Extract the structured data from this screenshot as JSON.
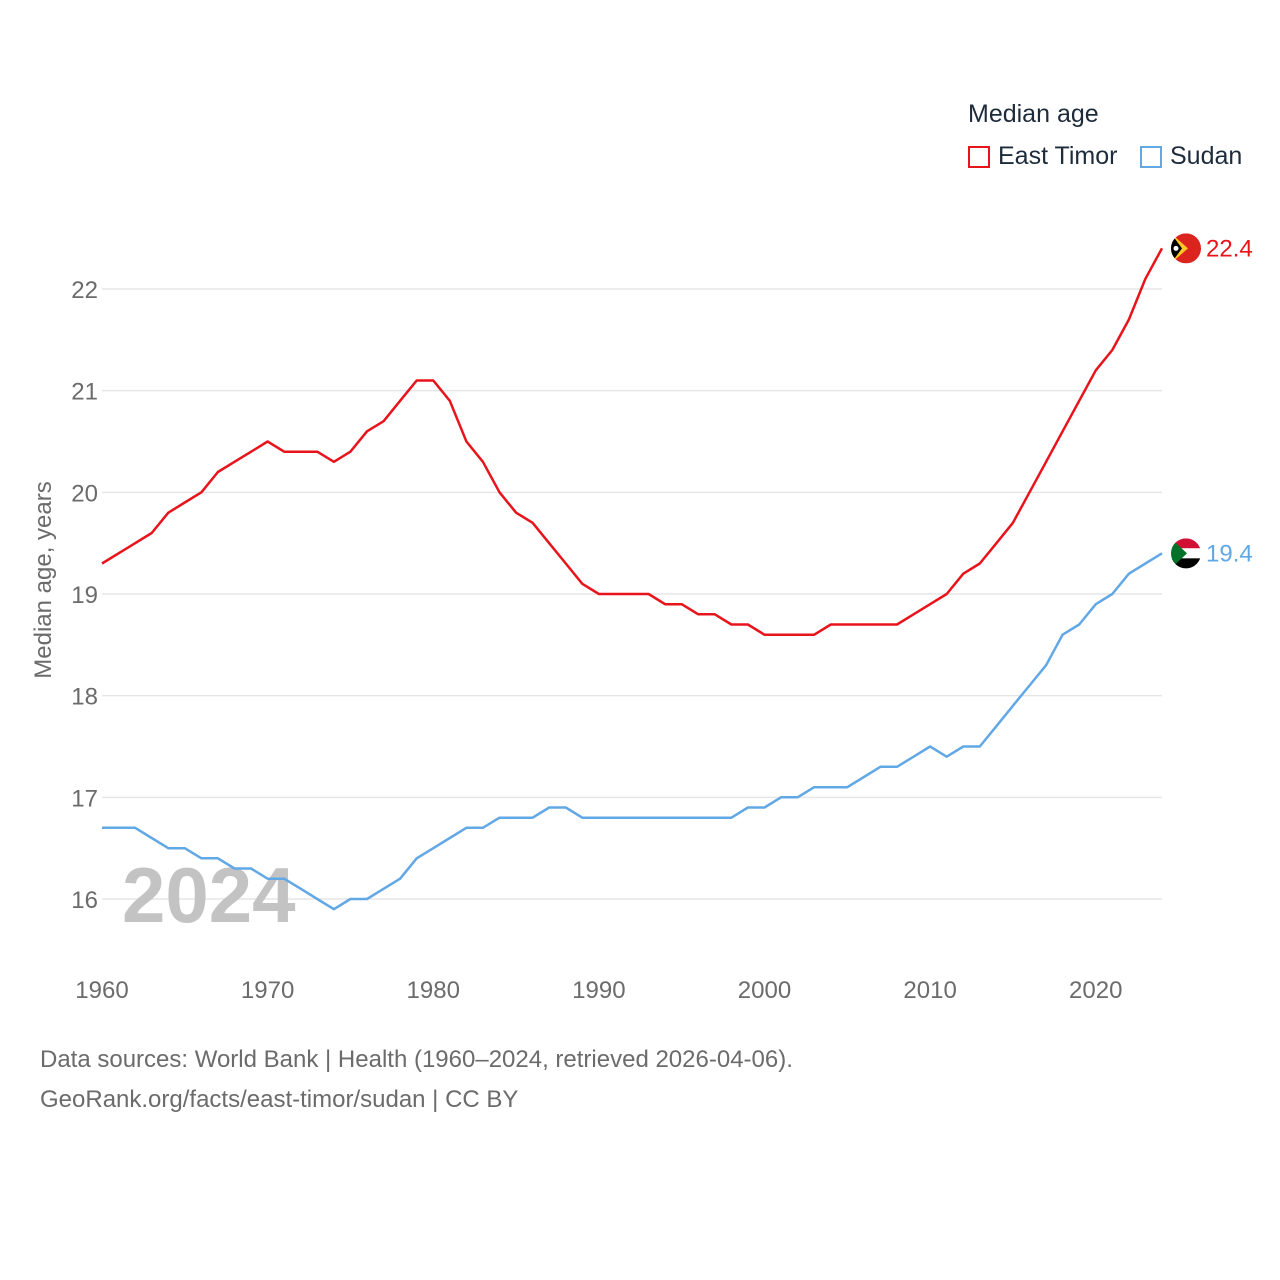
{
  "legend": {
    "title": "Median age",
    "items": [
      {
        "name": "East Timor",
        "color": "#e8141b"
      },
      {
        "name": "Sudan",
        "color": "#62a8e5"
      }
    ]
  },
  "watermark_year": "2024",
  "source": {
    "line1": "Data sources: World Bank | Health (1960–2024, retrieved 2026-04-06).",
    "line2": "GeoRank.org/facts/east-timor/sudan | CC BY"
  },
  "chart_data": {
    "type": "line",
    "title": "Median age",
    "xlabel": "",
    "ylabel": "Median age, years",
    "xlim": [
      1960,
      2024
    ],
    "ylim": [
      15.5,
      22.9
    ],
    "x_ticks": [
      "1960",
      "1970",
      "1980",
      "1990",
      "2000",
      "2010",
      "2020"
    ],
    "y_ticks": [
      "16",
      "17",
      "18",
      "19",
      "20",
      "21",
      "22"
    ],
    "grid": true,
    "legend_position": "top-right",
    "x": [
      1960,
      1961,
      1962,
      1963,
      1964,
      1965,
      1966,
      1967,
      1968,
      1969,
      1970,
      1971,
      1972,
      1973,
      1974,
      1975,
      1976,
      1977,
      1978,
      1979,
      1980,
      1981,
      1982,
      1983,
      1984,
      1985,
      1986,
      1987,
      1988,
      1989,
      1990,
      1991,
      1992,
      1993,
      1994,
      1995,
      1996,
      1997,
      1998,
      1999,
      2000,
      2001,
      2002,
      2003,
      2004,
      2005,
      2006,
      2007,
      2008,
      2009,
      2010,
      2011,
      2012,
      2013,
      2014,
      2015,
      2016,
      2017,
      2018,
      2019,
      2020,
      2021,
      2022,
      2023,
      2024
    ],
    "series": [
      {
        "name": "East Timor",
        "color": "#e8141b",
        "end_label": "22.4",
        "values": [
          19.3,
          19.4,
          19.5,
          19.6,
          19.8,
          19.9,
          20.0,
          20.2,
          20.3,
          20.4,
          20.5,
          20.4,
          20.4,
          20.4,
          20.3,
          20.4,
          20.6,
          20.7,
          20.9,
          21.1,
          21.1,
          20.9,
          20.5,
          20.3,
          20.0,
          19.8,
          19.7,
          19.5,
          19.3,
          19.1,
          19.0,
          19.0,
          19.0,
          19.0,
          18.9,
          18.9,
          18.8,
          18.8,
          18.7,
          18.7,
          18.6,
          18.6,
          18.6,
          18.6,
          18.7,
          18.7,
          18.7,
          18.7,
          18.7,
          18.8,
          18.9,
          19.0,
          19.2,
          19.3,
          19.5,
          19.7,
          20.0,
          20.3,
          20.6,
          20.9,
          21.2,
          21.4,
          21.7,
          22.1,
          22.4
        ]
      },
      {
        "name": "Sudan",
        "color": "#62a8e5",
        "end_label": "19.4",
        "values": [
          16.7,
          16.7,
          16.7,
          16.6,
          16.5,
          16.5,
          16.4,
          16.4,
          16.3,
          16.3,
          16.2,
          16.2,
          16.1,
          16.0,
          15.9,
          16.0,
          16.0,
          16.1,
          16.2,
          16.4,
          16.5,
          16.6,
          16.7,
          16.7,
          16.8,
          16.8,
          16.8,
          16.9,
          16.9,
          16.8,
          16.8,
          16.8,
          16.8,
          16.8,
          16.8,
          16.8,
          16.8,
          16.8,
          16.8,
          16.9,
          16.9,
          17.0,
          17.0,
          17.1,
          17.1,
          17.1,
          17.2,
          17.3,
          17.3,
          17.4,
          17.5,
          17.4,
          17.5,
          17.5,
          17.7,
          17.9,
          18.1,
          18.3,
          18.6,
          18.7,
          18.9,
          19.0,
          19.2,
          19.3,
          19.4
        ]
      }
    ]
  }
}
